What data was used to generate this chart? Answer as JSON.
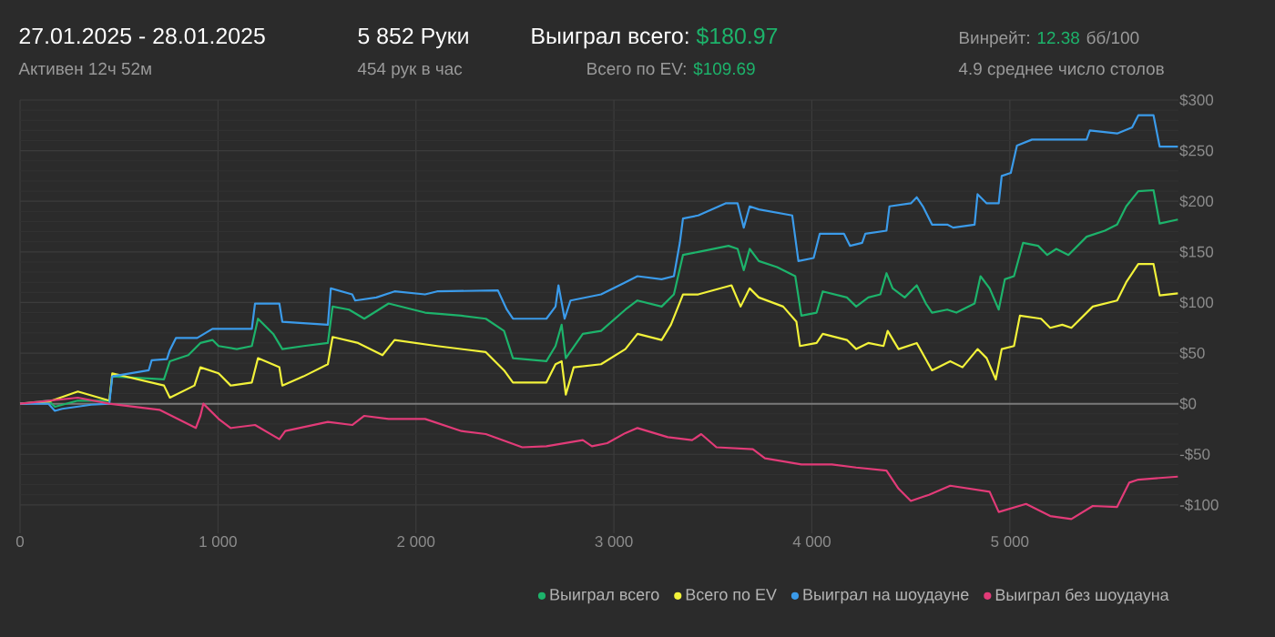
{
  "chart_data": {
    "type": "line",
    "title": "27.01.2025 - 28.01.2025",
    "subtitle": "Активен 12ч 52м",
    "annotations": [
      "5 852 Руки",
      "454 рук в час",
      "Выиграл всего:",
      "$180.97",
      "Всего по EV:",
      "$109.69",
      "Винрейт:",
      "12.38",
      "бб/100",
      "4.9 среднее число столов"
    ],
    "xlim": [
      0,
      5852
    ],
    "ylim": [
      -128,
      300
    ],
    "xticks": [
      0,
      {
        "value": 1000,
        "label": "1 000"
      },
      {
        "value": 2000,
        "label": "2 000"
      },
      {
        "value": 3000,
        "label": "3 000"
      },
      {
        "value": 4000,
        "label": "4 000"
      },
      {
        "value": 5000,
        "label": "5 000"
      }
    ],
    "yticks": [
      {
        "value": -100,
        "label": "-$100"
      },
      {
        "value": -50,
        "label": "-$50"
      },
      {
        "value": 0,
        "label": "$0"
      },
      {
        "value": 50,
        "label": "$50"
      },
      {
        "value": 100,
        "label": "$100"
      },
      {
        "value": 150,
        "label": "$150"
      },
      {
        "value": 200,
        "label": "$200"
      },
      {
        "value": 250,
        "label": "$250"
      },
      {
        "value": 300,
        "label": "$300"
      }
    ],
    "grid": true,
    "legend": "bottom right",
    "marker": "none",
    "line_style": "solid",
    "ref_lines": [
      {
        "axis": "y",
        "value": 0,
        "color": "#7a7a7a"
      }
    ],
    "series": [
      {
        "name": "Выиграл всего",
        "color": "#1db36b",
        "x": [
          0,
          144,
          176,
          292,
          451,
          466,
          727,
          757,
          850,
          911,
          972,
          1003,
          1095,
          1171,
          1202,
          1279,
          1325,
          1432,
          1555,
          1579,
          1662,
          1739,
          1862,
          2046,
          2230,
          2353,
          2445,
          2490,
          2659,
          2705,
          2736,
          2757,
          2843,
          2935,
          3058,
          3119,
          3241,
          3303,
          3349,
          3426,
          3579,
          3625,
          3656,
          3686,
          3732,
          3824,
          3916,
          3947,
          4024,
          4055,
          4177,
          4224,
          4285,
          4346,
          4377,
          4408,
          4469,
          4530,
          4576,
          4607,
          4684,
          4730,
          4822,
          4852,
          4898,
          4944,
          4975,
          5021,
          5067,
          5143,
          5189,
          5235,
          5296,
          5388,
          5480,
          5542,
          5588,
          5649,
          5726,
          5757,
          5849
        ],
        "values": [
          0,
          3,
          -3,
          3,
          3,
          27,
          24,
          42,
          48,
          60,
          63,
          57,
          54,
          57,
          84,
          69,
          54,
          57,
          60,
          96,
          93,
          84,
          99,
          90,
          87,
          84,
          72,
          45,
          42,
          57,
          78,
          45,
          69,
          72,
          93,
          102,
          96,
          108,
          147,
          150,
          156,
          153,
          132,
          153,
          141,
          135,
          126,
          87,
          90,
          111,
          105,
          96,
          105,
          108,
          129,
          114,
          105,
          117,
          99,
          90,
          93,
          90,
          99,
          126,
          114,
          93,
          123,
          126,
          159,
          156,
          147,
          153,
          147,
          165,
          171,
          177,
          195,
          210,
          211,
          178,
          182
        ]
      },
      {
        "name": "Всего по EV",
        "color": "#f2f23a",
        "x": [
          0,
          144,
          292,
          451,
          466,
          727,
          757,
          881,
          911,
          1003,
          1064,
          1171,
          1202,
          1310,
          1325,
          1432,
          1555,
          1579,
          1708,
          1831,
          1892,
          2107,
          2353,
          2445,
          2490,
          2659,
          2705,
          2736,
          2757,
          2797,
          2935,
          3058,
          3119,
          3241,
          3288,
          3349,
          3426,
          3594,
          3640,
          3686,
          3732,
          3855,
          3922,
          3940,
          4024,
          4055,
          4177,
          4224,
          4285,
          4362,
          4383,
          4438,
          4530,
          4607,
          4699,
          4761,
          4837,
          4883,
          4929,
          4959,
          5021,
          5051,
          5158,
          5204,
          5265,
          5311,
          5419,
          5542,
          5588,
          5649,
          5726,
          5757,
          5849
        ],
        "values": [
          0,
          2,
          12,
          3,
          30,
          18,
          6,
          18,
          36,
          30,
          18,
          21,
          45,
          36,
          18,
          27,
          39,
          66,
          60,
          48,
          63,
          57,
          51,
          33,
          21,
          21,
          39,
          42,
          9,
          36,
          39,
          54,
          69,
          63,
          78,
          108,
          108,
          117,
          96,
          114,
          105,
          96,
          81,
          57,
          60,
          69,
          63,
          54,
          60,
          57,
          72,
          54,
          60,
          33,
          42,
          36,
          54,
          45,
          24,
          54,
          57,
          87,
          84,
          75,
          78,
          75,
          96,
          102,
          120,
          138,
          138,
          107,
          109
        ]
      },
      {
        "name": "Выиграл на шоудауне",
        "color": "#3b9bea",
        "x": [
          0,
          144,
          176,
          213,
          359,
          451,
          466,
          650,
          665,
          742,
          757,
          788,
          895,
          972,
          1171,
          1187,
          1310,
          1325,
          1555,
          1570,
          1678,
          1693,
          1800,
          1892,
          2046,
          2107,
          2414,
          2459,
          2490,
          2659,
          2705,
          2720,
          2751,
          2781,
          2935,
          3058,
          3119,
          3241,
          3303,
          3333,
          3349,
          3426,
          3564,
          3625,
          3656,
          3686,
          3732,
          3901,
          3932,
          4009,
          4040,
          4162,
          4193,
          4254,
          4270,
          4377,
          4392,
          4500,
          4530,
          4561,
          4607,
          4684,
          4714,
          4822,
          4837,
          4883,
          4944,
          4959,
          5005,
          5036,
          5112,
          5388,
          5404,
          5542,
          5618,
          5649,
          5726,
          5757,
          5849
        ],
        "values": [
          0,
          0,
          -7,
          -5,
          -1,
          0,
          27,
          33,
          43,
          44,
          53,
          65,
          65,
          74,
          74,
          99,
          99,
          81,
          78,
          114,
          108,
          102,
          105,
          111,
          108,
          111,
          112,
          93,
          84,
          84,
          96,
          117,
          84,
          102,
          108,
          120,
          126,
          123,
          126,
          159,
          183,
          186,
          198,
          198,
          174,
          195,
          192,
          186,
          141,
          144,
          168,
          168,
          156,
          159,
          168,
          171,
          195,
          198,
          204,
          195,
          177,
          177,
          174,
          177,
          207,
          198,
          198,
          225,
          228,
          255,
          261,
          261,
          270,
          267,
          273,
          285,
          285,
          254,
          254
        ]
      },
      {
        "name": "Выиграл без шоудауна",
        "color": "#e23b78",
        "x": [
          0,
          292,
          451,
          704,
          888,
          911,
          926,
          1003,
          1064,
          1187,
          1310,
          1340,
          1555,
          1678,
          1739,
          1862,
          2046,
          2230,
          2353,
          2537,
          2659,
          2843,
          2889,
          2966,
          3058,
          3119,
          3272,
          3395,
          3441,
          3518,
          3702,
          3763,
          3947,
          4101,
          4224,
          4377,
          4438,
          4500,
          4592,
          4699,
          4898,
          4944,
          5082,
          5204,
          5311,
          5419,
          5542,
          5603,
          5649,
          5849
        ],
        "values": [
          0,
          6,
          0,
          -6,
          -24,
          -12,
          0,
          -15,
          -24,
          -21,
          -35,
          -27,
          -18,
          -21,
          -12,
          -15,
          -15,
          -27,
          -30,
          -43,
          -42,
          -36,
          -42,
          -39,
          -29,
          -24,
          -33,
          -36,
          -30,
          -43,
          -45,
          -54,
          -60,
          -60,
          -63,
          -66,
          -84,
          -96,
          -90,
          -81,
          -87,
          -107,
          -99,
          -111,
          -114,
          -101,
          -102,
          -78,
          -75,
          -72
        ]
      }
    ]
  }
}
